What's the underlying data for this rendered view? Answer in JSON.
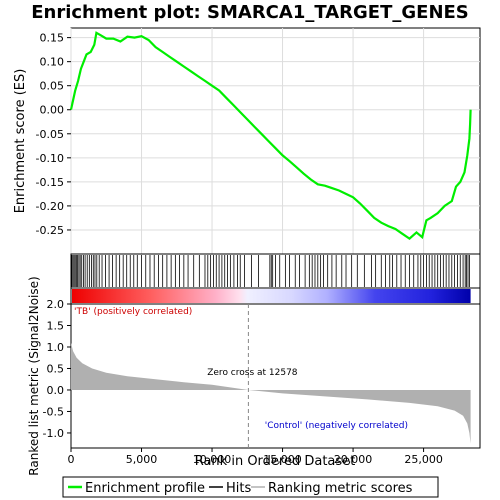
{
  "chart_data": {
    "type": "line",
    "title": "Enrichment plot: SMARCA1_TARGET_GENES",
    "xlabel": "Rank in Ordered Dataset",
    "xlim": [
      0,
      29000
    ],
    "x_ticks": [
      0,
      5000,
      10000,
      15000,
      20000,
      25000
    ],
    "x_tick_labels": [
      "0",
      "5,000",
      "10,000",
      "15,000",
      "20,000",
      "25,000"
    ],
    "es_panel": {
      "ylabel": "Enrichment score (ES)",
      "ylim": [
        -0.3,
        0.17
      ],
      "y_ticks": [
        -0.25,
        -0.2,
        -0.15,
        -0.1,
        -0.05,
        0.0,
        0.05,
        0.1,
        0.15
      ],
      "y_tick_labels": [
        "-0.25",
        "-0.20",
        "-0.15",
        "-0.10",
        "-0.05",
        "0.00",
        "0.05",
        "0.10",
        "0.15"
      ],
      "grid": true,
      "series": [
        {
          "name": "Enrichment profile",
          "color": "#00ee00",
          "points": [
            [
              0,
              0.0
            ],
            [
              150,
              0.02
            ],
            [
              300,
              0.04
            ],
            [
              500,
              0.06
            ],
            [
              700,
              0.085
            ],
            [
              900,
              0.1
            ],
            [
              1100,
              0.115
            ],
            [
              1400,
              0.12
            ],
            [
              1650,
              0.135
            ],
            [
              1800,
              0.16
            ],
            [
              2100,
              0.155
            ],
            [
              2500,
              0.148
            ],
            [
              3000,
              0.148
            ],
            [
              3500,
              0.142
            ],
            [
              4000,
              0.152
            ],
            [
              4500,
              0.15
            ],
            [
              5000,
              0.153
            ],
            [
              5500,
              0.145
            ],
            [
              6000,
              0.13
            ],
            [
              6500,
              0.12
            ],
            [
              7000,
              0.11
            ],
            [
              7500,
              0.1
            ],
            [
              8000,
              0.09
            ],
            [
              8500,
              0.08
            ],
            [
              9000,
              0.07
            ],
            [
              9500,
              0.06
            ],
            [
              10000,
              0.05
            ],
            [
              10500,
              0.04
            ],
            [
              11000,
              0.025
            ],
            [
              11500,
              0.01
            ],
            [
              12000,
              -0.005
            ],
            [
              12500,
              -0.02
            ],
            [
              13000,
              -0.035
            ],
            [
              13500,
              -0.05
            ],
            [
              14000,
              -0.065
            ],
            [
              14500,
              -0.08
            ],
            [
              15000,
              -0.095
            ],
            [
              15500,
              -0.107
            ],
            [
              16000,
              -0.12
            ],
            [
              16500,
              -0.133
            ],
            [
              17000,
              -0.145
            ],
            [
              17500,
              -0.155
            ],
            [
              18000,
              -0.158
            ],
            [
              18500,
              -0.163
            ],
            [
              19000,
              -0.168
            ],
            [
              19500,
              -0.175
            ],
            [
              20000,
              -0.182
            ],
            [
              20500,
              -0.195
            ],
            [
              21000,
              -0.21
            ],
            [
              21500,
              -0.225
            ],
            [
              22000,
              -0.235
            ],
            [
              22500,
              -0.242
            ],
            [
              23000,
              -0.248
            ],
            [
              23500,
              -0.258
            ],
            [
              24000,
              -0.268
            ],
            [
              24500,
              -0.255
            ],
            [
              24900,
              -0.265
            ],
            [
              25200,
              -0.23
            ],
            [
              25500,
              -0.225
            ],
            [
              26000,
              -0.215
            ],
            [
              26500,
              -0.2
            ],
            [
              27000,
              -0.19
            ],
            [
              27300,
              -0.16
            ],
            [
              27600,
              -0.15
            ],
            [
              27900,
              -0.13
            ],
            [
              28100,
              -0.095
            ],
            [
              28250,
              -0.06
            ],
            [
              28300,
              -0.03
            ],
            [
              28330,
              0.0
            ]
          ]
        }
      ]
    },
    "hits": [
      60,
      140,
      220,
      300,
      380,
      470,
      560,
      650,
      760,
      880,
      1000,
      1150,
      1300,
      1450,
      1580,
      1700,
      1830,
      2000,
      2200,
      2450,
      2700,
      2950,
      3200,
      3450,
      3700,
      3950,
      4200,
      4450,
      4700,
      5000,
      5300,
      5600,
      5900,
      6200,
      6500,
      6800,
      7100,
      7400,
      7700,
      8000,
      8300,
      8700,
      9100,
      9500,
      9700,
      9900,
      10100,
      10300,
      10500,
      10700,
      10900,
      11100,
      11300,
      11550,
      11800,
      12000,
      12300,
      12800,
      13300,
      14100,
      14200,
      14300,
      14500,
      14800,
      15200,
      15500,
      15900,
      16200,
      16600,
      16900,
      17100,
      17300,
      17500,
      17700,
      17900,
      18200,
      18500,
      18800,
      19200,
      19500,
      19900,
      20300,
      20800,
      21300,
      21600,
      22000,
      22300,
      22600,
      22800,
      23100,
      23400,
      23700,
      24000,
      24300,
      24600,
      24800,
      25000,
      25200,
      25400,
      25600,
      25800,
      26000,
      26200,
      26400,
      26600,
      26800,
      27000,
      27200,
      27400,
      27600,
      27800,
      27950,
      28050,
      28150,
      28250
    ],
    "metric_panel": {
      "ylabel": "Ranked list metric (Signal2Noise)",
      "ylim": [
        -1.35,
        2.0
      ],
      "y_ticks": [
        -1.0,
        -0.5,
        0.0,
        0.5,
        1.0,
        1.5,
        2.0
      ],
      "y_tick_labels": [
        "-1.0",
        "-0.5",
        "0.0",
        "0.5",
        "1.0",
        "1.5",
        "2.0"
      ],
      "fill_color": "#b0b0b0",
      "points": [
        [
          0,
          1.1
        ],
        [
          150,
          0.9
        ],
        [
          400,
          0.75
        ],
        [
          800,
          0.62
        ],
        [
          1500,
          0.5
        ],
        [
          2500,
          0.4
        ],
        [
          4000,
          0.32
        ],
        [
          6000,
          0.25
        ],
        [
          8000,
          0.18
        ],
        [
          10000,
          0.12
        ],
        [
          12578,
          0.0
        ],
        [
          15000,
          -0.08
        ],
        [
          18000,
          -0.15
        ],
        [
          21000,
          -0.22
        ],
        [
          24000,
          -0.3
        ],
        [
          26000,
          -0.38
        ],
        [
          27200,
          -0.48
        ],
        [
          27800,
          -0.6
        ],
        [
          28100,
          -0.78
        ],
        [
          28250,
          -1.0
        ],
        [
          28330,
          -1.25
        ]
      ],
      "zero_cross_label": "Zero cross at 12578",
      "zero_cross": 12578,
      "pos_label": "'TB' (positively correlated)",
      "neg_label": "'Control' (negatively correlated)"
    },
    "legend": {
      "placement": "bottom",
      "entries": [
        {
          "label": "Enrichment profile",
          "color": "#00ee00"
        },
        {
          "label": "Hits",
          "color": "#000000"
        },
        {
          "label": "Ranking metric scores",
          "color": "#b0b0b0"
        }
      ]
    }
  }
}
